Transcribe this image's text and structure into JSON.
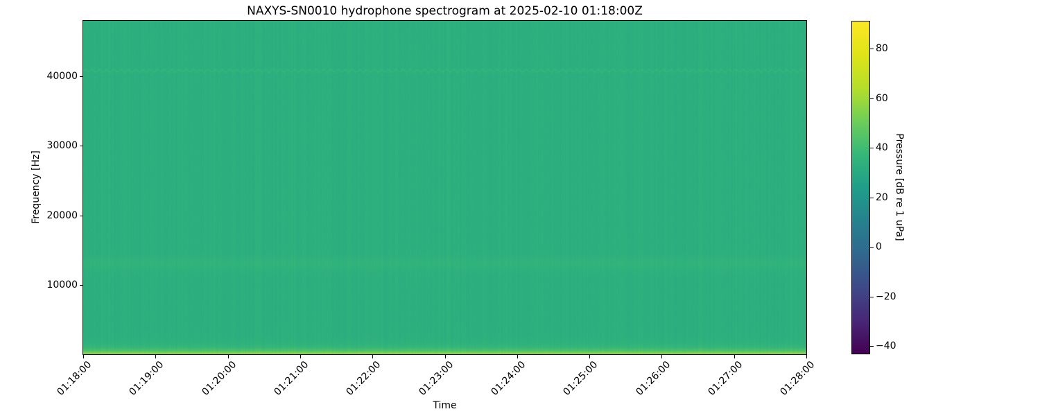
{
  "figure": {
    "title": "NAXYS-SN0010 hydrophone spectrogram at 2025-02-10 01:18:00Z",
    "xlabel": "Time",
    "ylabel": "Frequency [Hz]"
  },
  "axes": {
    "x_tick_labels": [
      "01:18:00",
      "01:19:00",
      "01:20:00",
      "01:21:00",
      "01:22:00",
      "01:23:00",
      "01:24:00",
      "01:25:00",
      "01:26:00",
      "01:27:00",
      "01:28:00"
    ],
    "y_tick_labels": [
      "10000",
      "20000",
      "30000",
      "40000"
    ]
  },
  "colorbar": {
    "label": "Pressure [dB re 1 uPa]",
    "tick_labels": [
      "80",
      "60",
      "40",
      "20",
      "0",
      "−20",
      "−40"
    ],
    "ticks": [
      80,
      60,
      40,
      20,
      0,
      -20,
      -40
    ],
    "colormap": "viridis",
    "colormap_stops": [
      "#440154",
      "#482878",
      "#3e4a89",
      "#31688e",
      "#26828e",
      "#1f9e89",
      "#35b779",
      "#6ece58",
      "#b5de2b",
      "#dfe318",
      "#fde725"
    ]
  },
  "chart_data": {
    "type": "heatmap",
    "title": "NAXYS-SN0010 hydrophone spectrogram at 2025-02-10 01:18:00Z",
    "xlabel": "Time",
    "ylabel": "Frequency [Hz]",
    "x_ticks": [
      "01:18:00",
      "01:19:00",
      "01:20:00",
      "01:21:00",
      "01:22:00",
      "01:23:00",
      "01:24:00",
      "01:25:00",
      "01:26:00",
      "01:27:00",
      "01:28:00"
    ],
    "x_range": {
      "start": "01:18:00",
      "end": "01:28:00",
      "duration_seconds": 600
    },
    "ylim": [
      0,
      48000
    ],
    "y_ticks": [
      10000,
      20000,
      30000,
      40000
    ],
    "grid": false,
    "legend": null,
    "color": {
      "colormap": "viridis",
      "vmin": -43,
      "vmax": 91,
      "label": "Pressure [dB re 1 uPa]"
    },
    "background_level_db": 33,
    "features": [
      {
        "type": "exp_low_band",
        "name": "low-frequency-broadband-noise",
        "peak_boost_db": 28,
        "decay_hz": 550
      },
      {
        "type": "gaussian_band",
        "name": "mid-frequency-band",
        "center_hz": 13000,
        "sigma_hz": 1000,
        "boost_db": 2.2
      },
      {
        "type": "wavy_tone",
        "name": "high-frequency-tonal-41khz",
        "center_hz": 40800,
        "amplitude_hz": 180,
        "period_s": 6,
        "sigma_hz": 150,
        "boost_db": 3.5
      },
      {
        "type": "noise",
        "name": "vertical-striations",
        "column_db": 1.1,
        "pixel_db": 0.7,
        "bright_column_probability": 0.05,
        "bright_column_db": 1.8
      }
    ]
  }
}
